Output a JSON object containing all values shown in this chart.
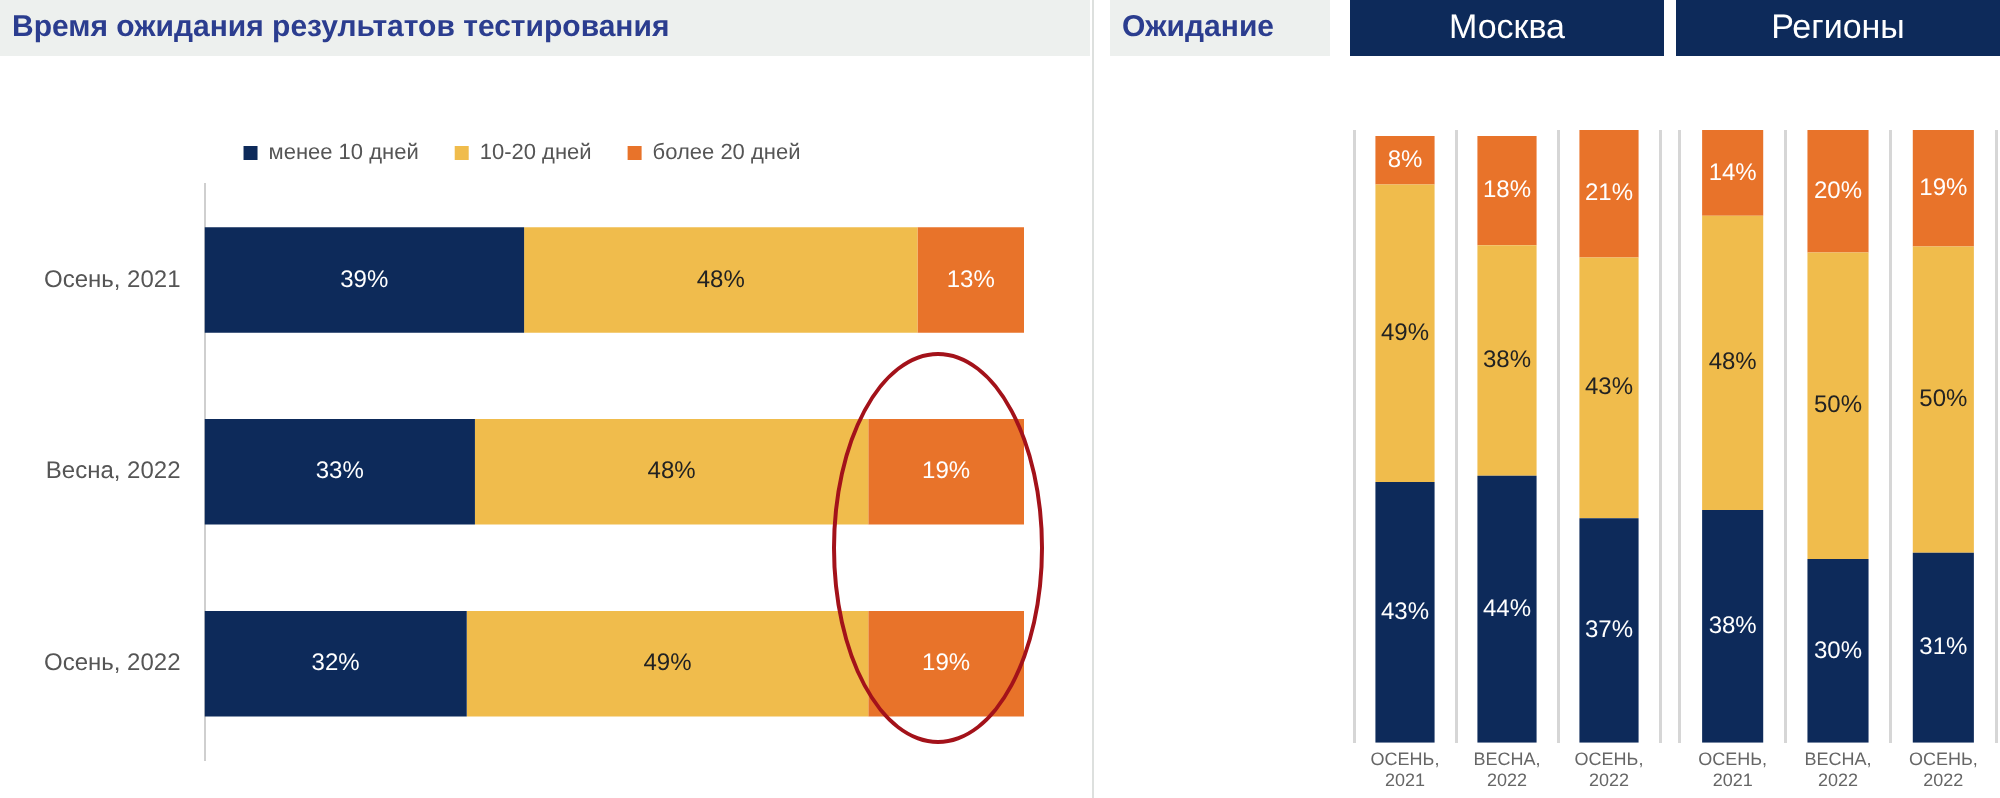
{
  "chart_data": [
    {
      "type": "bar",
      "orientation": "horizontal",
      "stacked": true,
      "title": "Время ожидания результатов тестирования",
      "categories": [
        "Осень, 2021",
        "Весна, 2022",
        "Осень, 2022"
      ],
      "legend": "top",
      "tick_labels": "y",
      "grid": false,
      "series": [
        {
          "name": "менее 10 дней",
          "color": "#0d2a5a",
          "values": [
            39,
            33,
            32
          ],
          "value_labels": [
            "39%",
            "33%",
            "32%"
          ]
        },
        {
          "name": "10-20 дней",
          "color": "#f0bc4c",
          "values": [
            48,
            48,
            49
          ],
          "value_labels": [
            "48%",
            "48%",
            "49%"
          ]
        },
        {
          "name": "более 20 дней",
          "color": "#e8732a",
          "values": [
            13,
            19,
            19
          ],
          "value_labels": [
            "13%",
            "19%",
            "19%"
          ]
        }
      ]
    },
    {
      "type": "bar",
      "stacked": true,
      "title": "Москва",
      "annotations": [
        "Ожидание"
      ],
      "categories": [
        "ОСЕНЬ, 2021",
        "ВЕСНА, 2022",
        "ОСЕНЬ, 2022"
      ],
      "legend": false,
      "tick_labels": "x",
      "grid": "x",
      "series": [
        {
          "color": "#0d2a5a",
          "values": [
            43,
            44,
            37
          ],
          "value_labels": [
            "43%",
            "44%",
            "37%"
          ]
        },
        {
          "color": "#f0bc4c",
          "values": [
            49,
            38,
            43
          ],
          "value_labels": [
            "49%",
            "38%",
            "43%"
          ]
        },
        {
          "color": "#e8732a",
          "values": [
            8,
            18,
            21
          ],
          "value_labels": [
            "8%",
            "18%",
            "21%"
          ]
        }
      ]
    },
    {
      "type": "bar",
      "stacked": true,
      "title": "Регионы",
      "categories": [
        "ОСЕНЬ, 2021",
        "ВЕСНА, 2022",
        "ОСЕНЬ, 2022"
      ],
      "legend": false,
      "tick_labels": "x",
      "grid": "x",
      "series": [
        {
          "color": "#0d2a5a",
          "values": [
            38,
            30,
            31
          ],
          "value_labels": [
            "38%",
            "30%",
            "31%"
          ]
        },
        {
          "color": "#f0bc4c",
          "values": [
            48,
            50,
            50
          ],
          "value_labels": [
            "48%",
            "50%",
            "50%"
          ]
        },
        {
          "color": "#e8732a",
          "values": [
            14,
            20,
            19
          ],
          "value_labels": [
            "14%",
            "20%",
            "19%"
          ]
        }
      ]
    }
  ]
}
